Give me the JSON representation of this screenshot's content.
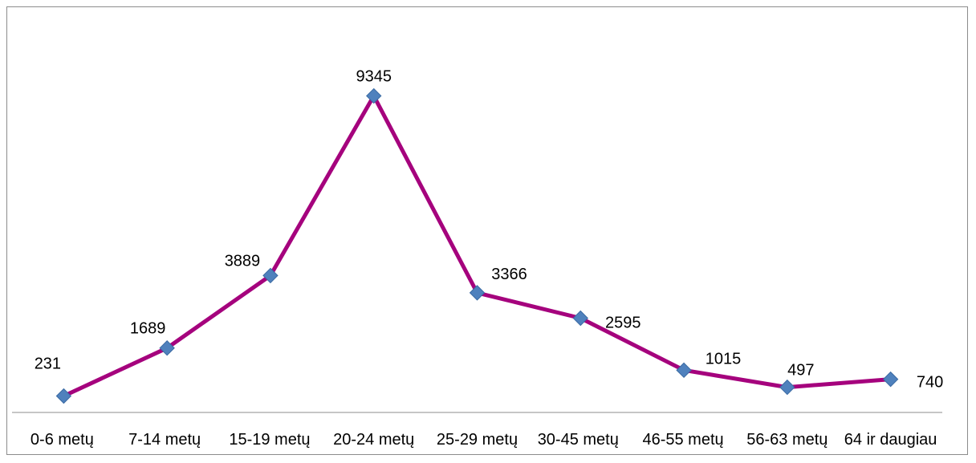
{
  "chart_data": {
    "type": "line",
    "title": "",
    "xlabel": "",
    "ylabel": "",
    "categories": [
      "0-6 metų",
      "7-14 metų",
      "15-19 metų",
      "20-24 metų",
      "25-29 metų",
      "30-45 metų",
      "46-55 metų",
      "56-63 metų",
      "64 ir daugiau"
    ],
    "series": [
      {
        "values": [
          231,
          1689,
          3889,
          9345,
          3366,
          2595,
          1015,
          497,
          740
        ],
        "color": "#A5027D",
        "marker": "diamond",
        "marker_color": "#4F81BD"
      }
    ],
    "data_labels": [
      "231",
      "1689",
      "3889",
      "9345",
      "3366",
      "2595",
      "1015",
      "497",
      "740"
    ],
    "ylim": [
      0,
      10000
    ],
    "grid": false,
    "legend": "none",
    "y_axis_visible": false
  }
}
